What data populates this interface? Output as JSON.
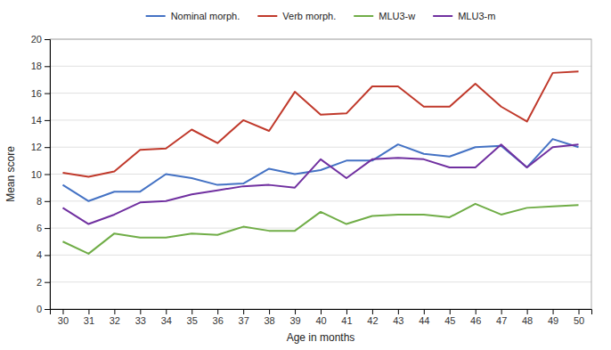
{
  "chart_data": {
    "type": "line",
    "x": [
      30,
      31,
      32,
      33,
      34,
      35,
      36,
      37,
      38,
      39,
      40,
      41,
      42,
      43,
      44,
      45,
      46,
      47,
      48,
      49,
      50
    ],
    "series": [
      {
        "name": "Nominal morph.",
        "color": "#4472C4",
        "values": [
          9.2,
          8.0,
          8.7,
          8.7,
          10.0,
          9.7,
          9.2,
          9.3,
          10.4,
          10.0,
          10.3,
          11.0,
          11.0,
          12.2,
          11.5,
          11.3,
          12.0,
          12.1,
          10.5,
          12.6,
          12.0
        ]
      },
      {
        "name": "Verb morph.",
        "color": "#C0392B",
        "values": [
          10.1,
          9.8,
          10.2,
          11.8,
          11.9,
          13.3,
          12.3,
          14.0,
          13.2,
          16.1,
          14.4,
          14.5,
          16.5,
          16.5,
          15.0,
          15.0,
          16.7,
          15.0,
          13.9,
          17.5,
          17.6
        ]
      },
      {
        "name": "MLU3-w",
        "color": "#70AD47",
        "values": [
          5.0,
          4.1,
          5.6,
          5.3,
          5.3,
          5.6,
          5.5,
          6.1,
          5.8,
          5.8,
          7.2,
          6.3,
          6.9,
          7.0,
          7.0,
          6.8,
          7.8,
          7.0,
          7.5,
          7.6,
          7.7
        ]
      },
      {
        "name": "MLU3-m",
        "color": "#7030A0",
        "values": [
          7.5,
          6.3,
          7.0,
          7.9,
          8.0,
          8.5,
          8.8,
          9.1,
          9.2,
          9.0,
          11.1,
          9.7,
          11.1,
          11.2,
          11.1,
          10.5,
          10.5,
          12.2,
          10.5,
          12.0,
          12.2
        ]
      }
    ],
    "xlabel": "Age in months",
    "ylabel": "Mean score",
    "xlim": [
      29.5,
      50.5
    ],
    "xticks": [
      30,
      31,
      32,
      33,
      34,
      35,
      36,
      37,
      38,
      39,
      40,
      41,
      42,
      43,
      44,
      45,
      46,
      47,
      48,
      49,
      50
    ],
    "ylim": [
      0,
      20
    ],
    "yticks": [
      0,
      2,
      4,
      6,
      8,
      10,
      12,
      14,
      16,
      18,
      20
    ],
    "grid": true,
    "legend": "top"
  }
}
